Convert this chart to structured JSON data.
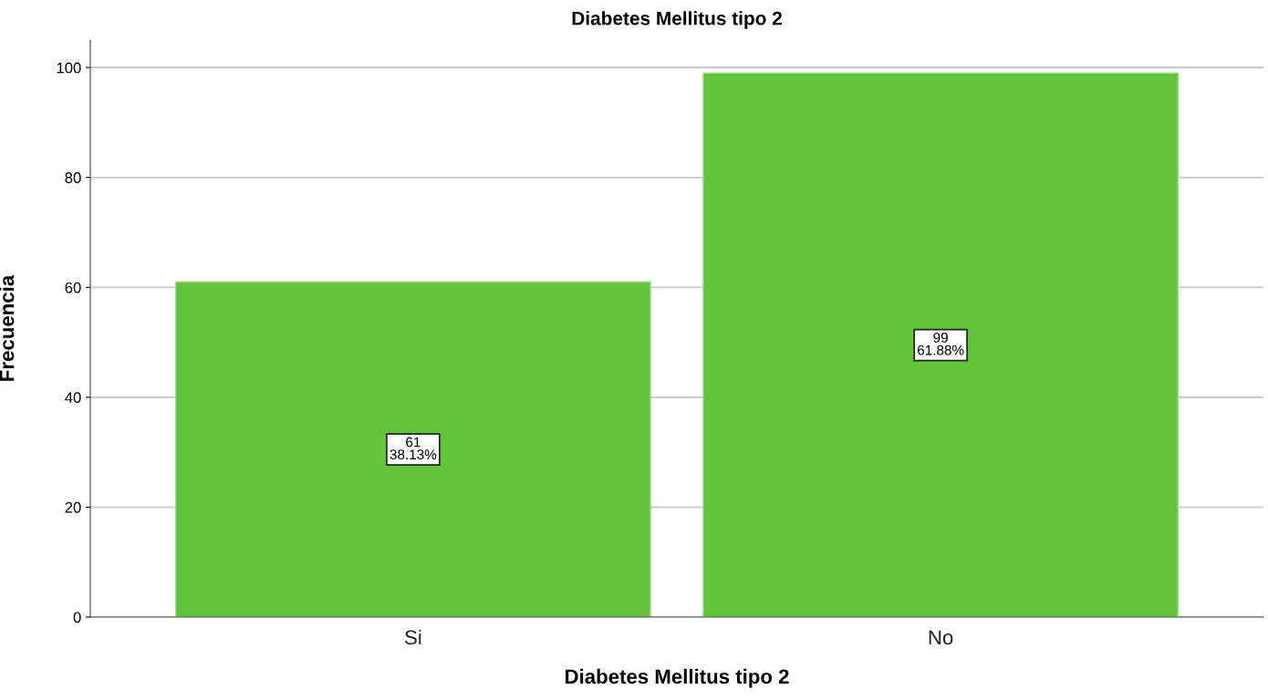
{
  "chart_data": {
    "type": "bar",
    "title": "Diabetes Mellitus tipo 2",
    "xlabel": "Diabetes Mellitus tipo 2",
    "ylabel": "Frecuencia",
    "categories": [
      "Si",
      "No"
    ],
    "values": [
      61,
      99
    ],
    "color": "#62c43a",
    "value_labels": [
      "61\n38.13%",
      "99\n61.88%"
    ],
    "ylim": [
      0,
      105
    ],
    "yticks": [
      0,
      20,
      40,
      60,
      80,
      100
    ],
    "grid": "y",
    "legend": false
  }
}
